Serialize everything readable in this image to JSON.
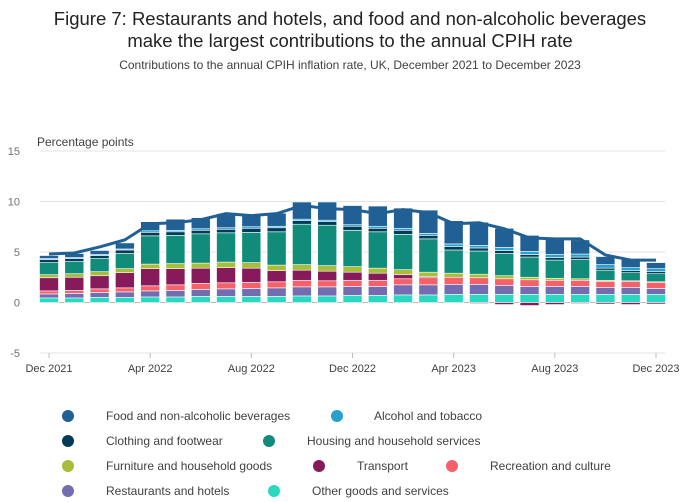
{
  "header": {
    "title_line1": "Figure 7: Restaurants and hotels, and food and non-alcoholic beverages",
    "title_line2": "make the largest contributions to the annual CPIH rate",
    "subtitle": "Contributions to the annual CPIH inflation rate, UK, December 2021 to December 2023"
  },
  "chart_data": {
    "type": "bar",
    "stacked": true,
    "ylabel": "Percentage points",
    "ylim": [
      -5,
      15
    ],
    "yticks": [
      -5,
      0,
      5,
      10,
      15
    ],
    "grid": true,
    "legend_position": "bottom",
    "xtick_labels": [
      "Dec 2021",
      "Apr 2022",
      "Aug 2022",
      "Dec 2022",
      "Apr 2023",
      "Aug 2023",
      "Dec 2023"
    ],
    "categories": [
      "Dec 2021",
      "Jan 2022",
      "Feb 2022",
      "Mar 2022",
      "Apr 2022",
      "May 2022",
      "Jun 2022",
      "Jul 2022",
      "Aug 2022",
      "Sep 2022",
      "Oct 2022",
      "Nov 2022",
      "Dec 2022",
      "Jan 2023",
      "Feb 2023",
      "Mar 2023",
      "Apr 2023",
      "May 2023",
      "Jun 2023",
      "Jul 2023",
      "Aug 2023",
      "Sep 2023",
      "Oct 2023",
      "Nov 2023",
      "Dec 2023"
    ],
    "series": [
      {
        "name": "Other goods and services",
        "color": "#28d8c0",
        "values": [
          0.45,
          0.45,
          0.5,
          0.5,
          0.55,
          0.55,
          0.6,
          0.6,
          0.6,
          0.6,
          0.65,
          0.65,
          0.7,
          0.7,
          0.75,
          0.75,
          0.8,
          0.8,
          0.8,
          0.8,
          0.8,
          0.8,
          0.8,
          0.8,
          0.8
        ]
      },
      {
        "name": "Restaurants and hotels",
        "color": "#746cb1",
        "values": [
          0.4,
          0.45,
          0.5,
          0.55,
          0.6,
          0.65,
          0.7,
          0.75,
          0.8,
          0.85,
          0.9,
          0.9,
          0.9,
          0.9,
          1.0,
          1.0,
          1.0,
          1.0,
          0.9,
          0.8,
          0.8,
          0.8,
          0.7,
          0.7,
          0.6
        ]
      },
      {
        "name": "Recreation and culture",
        "color": "#f66068",
        "values": [
          0.3,
          0.3,
          0.35,
          0.4,
          0.5,
          0.55,
          0.6,
          0.6,
          0.6,
          0.6,
          0.65,
          0.6,
          0.6,
          0.6,
          0.6,
          0.7,
          0.7,
          0.65,
          0.65,
          0.65,
          0.6,
          0.6,
          0.6,
          0.6,
          0.6
        ]
      },
      {
        "name": "Transport",
        "color": "#871a5b",
        "values": [
          1.3,
          1.3,
          1.3,
          1.5,
          1.7,
          1.6,
          1.5,
          1.5,
          1.4,
          1.1,
          1.0,
          0.95,
          0.8,
          0.7,
          0.4,
          0.1,
          0.0,
          -0.1,
          -0.2,
          -0.3,
          -0.2,
          -0.1,
          -0.15,
          -0.2,
          -0.15
        ]
      },
      {
        "name": "Furniture and household goods",
        "color": "#a8bd3a",
        "values": [
          0.3,
          0.35,
          0.4,
          0.4,
          0.45,
          0.5,
          0.5,
          0.55,
          0.55,
          0.55,
          0.55,
          0.55,
          0.55,
          0.5,
          0.5,
          0.45,
          0.4,
          0.35,
          0.3,
          0.25,
          0.2,
          0.15,
          0.1,
          0.05,
          0.05
        ]
      },
      {
        "name": "Housing and household services",
        "color": "#118c7b",
        "values": [
          1.2,
          1.2,
          1.3,
          1.5,
          2.8,
          2.8,
          2.9,
          2.9,
          3.0,
          3.3,
          4.0,
          4.0,
          3.6,
          3.6,
          3.5,
          3.3,
          2.3,
          2.3,
          2.2,
          2.0,
          1.8,
          1.9,
          1.0,
          0.8,
          0.8
        ]
      },
      {
        "name": "Clothing and footwear",
        "color": "#003c57",
        "values": [
          0.3,
          0.3,
          0.3,
          0.35,
          0.35,
          0.35,
          0.35,
          0.35,
          0.4,
          0.4,
          0.35,
          0.35,
          0.4,
          0.35,
          0.4,
          0.35,
          0.35,
          0.3,
          0.3,
          0.25,
          0.25,
          0.25,
          0.2,
          0.2,
          0.2
        ]
      },
      {
        "name": "Alcohol and tobacco",
        "color": "#27a0cc",
        "values": [
          0.1,
          0.1,
          0.1,
          0.1,
          0.15,
          0.15,
          0.15,
          0.15,
          0.15,
          0.15,
          0.15,
          0.15,
          0.15,
          0.2,
          0.2,
          0.2,
          0.25,
          0.25,
          0.3,
          0.3,
          0.3,
          0.3,
          0.35,
          0.3,
          0.3
        ]
      },
      {
        "name": "Food and non-alcoholic beverages",
        "color": "#206095",
        "values": [
          0.3,
          0.4,
          0.4,
          0.6,
          0.9,
          1.1,
          1.1,
          1.4,
          1.1,
          1.3,
          1.7,
          1.8,
          1.9,
          2.0,
          2.0,
          2.3,
          2.3,
          2.3,
          1.9,
          1.6,
          1.5,
          1.4,
          0.8,
          0.8,
          0.6
        ]
      }
    ],
    "total": {
      "name": "CPIH",
      "color": "#206095",
      "values": [
        4.8,
        4.9,
        5.5,
        6.2,
        7.8,
        7.9,
        8.2,
        8.8,
        8.6,
        8.8,
        9.6,
        9.3,
        9.2,
        8.8,
        9.2,
        8.9,
        7.8,
        7.9,
        7.3,
        6.4,
        6.3,
        6.3,
        4.7,
        4.2,
        4.2
      ]
    }
  },
  "legend_order": [
    "Food and non-alcoholic beverages",
    "Alcohol and tobacco",
    "Clothing and footwear",
    "Housing and household services",
    "Furniture and household goods",
    "Transport",
    "Recreation and culture",
    "Restaurants and hotels",
    "Other goods and services"
  ]
}
